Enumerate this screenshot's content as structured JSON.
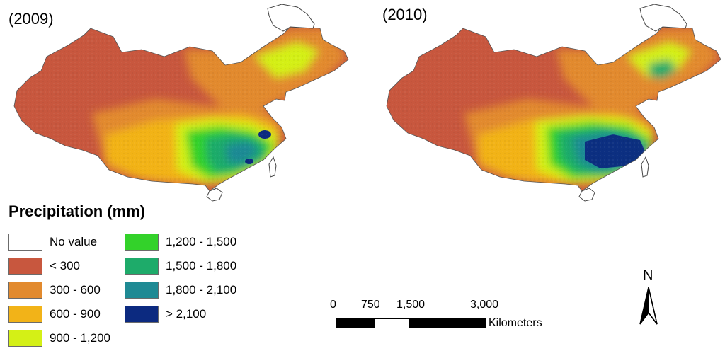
{
  "maps": [
    {
      "id": "2009",
      "title": "(2009)"
    },
    {
      "id": "2010",
      "title": "(2010)"
    }
  ],
  "legend": {
    "title": "Precipitation (mm)",
    "classes": [
      {
        "label": "No value",
        "color": "#ffffff"
      },
      {
        "label": "< 300",
        "color": "#c8573e"
      },
      {
        "label": "300 - 600",
        "color": "#e28a2e"
      },
      {
        "label": "600 - 900",
        "color": "#f2b318"
      },
      {
        "label": "900 - 1,200",
        "color": "#d4f016"
      },
      {
        "label": "1,200 - 1,500",
        "color": "#33d22a"
      },
      {
        "label": "1,500 - 1,800",
        "color": "#1eab6a"
      },
      {
        "label": "1,800 - 2,100",
        "color": "#1f8a94"
      },
      {
        "label": "> 2,100",
        "color": "#0c2a80"
      }
    ]
  },
  "scale_bar": {
    "ticks": [
      "0",
      "750",
      "1,500",
      "3,000"
    ],
    "units": "Kilometers"
  },
  "north_arrow": {
    "label": "N"
  }
}
